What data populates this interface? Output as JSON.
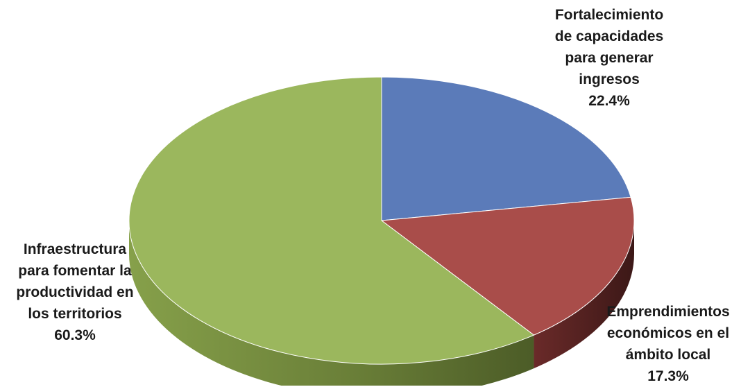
{
  "chart_data": {
    "type": "pie",
    "style": "3d",
    "title": "",
    "slices": [
      {
        "label_lines": [
          "Fortalecimiento",
          "de capacidades",
          "para generar",
          "ingresos"
        ],
        "value": 22.4,
        "value_label": "22.4%",
        "color": "#5b7bb9",
        "side_color": "#3c5689"
      },
      {
        "label_lines": [
          "Emprendimientos",
          "económicos en el",
          "ámbito local"
        ],
        "value": 17.3,
        "value_label": "17.3%",
        "color": "#a94d4a",
        "side_color": "#6e2c2b"
      },
      {
        "label_lines": [
          "Infraestructura",
          "para fomentar la",
          "productividad en",
          "los territorios"
        ],
        "value": 60.3,
        "value_label": "60.3%",
        "color": "#9bb75d",
        "side_color": "#6c8138"
      }
    ]
  }
}
